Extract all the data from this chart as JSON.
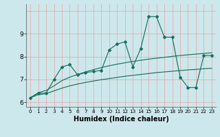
{
  "title": "",
  "xlabel": "Humidex (Indice chaleur)",
  "x": [
    0,
    1,
    2,
    3,
    4,
    5,
    6,
    7,
    8,
    9,
    10,
    11,
    12,
    13,
    14,
    15,
    16,
    17,
    18,
    19,
    20,
    21,
    22,
    23
  ],
  "line1": [
    6.2,
    6.4,
    6.4,
    7.0,
    7.55,
    7.65,
    7.2,
    7.3,
    7.35,
    7.4,
    8.3,
    8.55,
    8.65,
    7.55,
    8.35,
    9.75,
    9.75,
    8.85,
    8.85,
    7.1,
    6.65,
    6.65,
    8.05,
    8.05
  ],
  "line2_upper": [
    6.2,
    6.42,
    6.52,
    6.72,
    6.95,
    7.1,
    7.22,
    7.33,
    7.43,
    7.52,
    7.6,
    7.67,
    7.73,
    7.79,
    7.84,
    7.89,
    7.93,
    7.97,
    8.01,
    8.05,
    8.08,
    8.11,
    8.14,
    8.17
  ],
  "line2_lower": [
    6.2,
    6.33,
    6.38,
    6.5,
    6.62,
    6.72,
    6.8,
    6.87,
    6.93,
    6.99,
    7.04,
    7.09,
    7.14,
    7.18,
    7.22,
    7.26,
    7.3,
    7.33,
    7.36,
    7.39,
    7.42,
    7.44,
    7.47,
    7.49
  ],
  "line_color": "#1a7060",
  "bg_color": "#cde8ec",
  "grid_color_v": "#e8a0a0",
  "grid_color_h": "#e8a0a0",
  "ylim": [
    5.8,
    10.3
  ],
  "yticks": [
    6,
    7,
    8,
    9
  ],
  "ytick_labels": [
    "6",
    "7",
    "8",
    "9"
  ],
  "xlim": [
    -0.5,
    23.5
  ],
  "xticks": [
    0,
    1,
    2,
    3,
    4,
    5,
    6,
    7,
    8,
    9,
    10,
    11,
    12,
    13,
    14,
    15,
    16,
    17,
    18,
    19,
    20,
    21,
    22,
    23
  ],
  "xtick_labels": [
    "0",
    "1",
    "2",
    "3",
    "4",
    "5",
    "6",
    "7",
    "8",
    "9",
    "10",
    "11",
    "12",
    "13",
    "14",
    "15",
    "16",
    "17",
    "18",
    "19",
    "20",
    "21",
    "22",
    "23"
  ]
}
